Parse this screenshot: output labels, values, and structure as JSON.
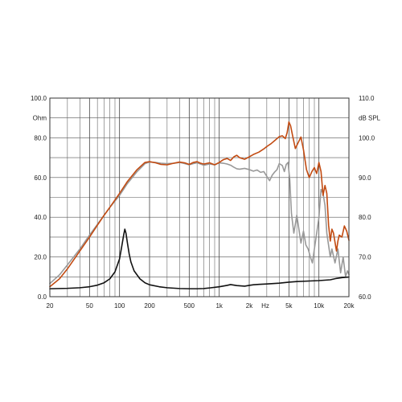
{
  "chart_data": {
    "type": "line",
    "x_scale": "log",
    "grid": true,
    "left_axis": {
      "unit": "Ohm",
      "range": [
        0,
        100
      ],
      "ticks": [
        "0.0",
        "20.0",
        "40.0",
        "60.0",
        "80.0",
        "100.0"
      ]
    },
    "right_axis": {
      "unit": "dB SPL",
      "range": [
        60,
        110
      ],
      "ticks": [
        "60.0",
        "70.0",
        "80.0",
        "90.0",
        "100.0",
        "110.0"
      ]
    },
    "x_axis": {
      "unit": "Hz",
      "range": [
        20,
        20000
      ],
      "tick_labels": [
        {
          "value": 20,
          "label": "20"
        },
        {
          "value": 50,
          "label": "50"
        },
        {
          "value": 100,
          "label": "100"
        },
        {
          "value": 200,
          "label": "200"
        },
        {
          "value": 500,
          "label": "500"
        },
        {
          "value": 1000,
          "label": "1k"
        },
        {
          "value": 2000,
          "label": "2k"
        },
        {
          "value": 5000,
          "label": "5k"
        },
        {
          "value": 10000,
          "label": "10k"
        },
        {
          "value": 20000,
          "label": "20k"
        }
      ]
    },
    "series": [
      {
        "key": "spl_on_axis",
        "axis": "right",
        "color": "#c24b12",
        "points": [
          [
            20,
            62.5
          ],
          [
            25,
            64.5
          ],
          [
            30,
            67
          ],
          [
            40,
            71.5
          ],
          [
            50,
            75
          ],
          [
            60,
            78
          ],
          [
            70,
            80.5
          ],
          [
            80,
            82.5
          ],
          [
            100,
            86
          ],
          [
            120,
            89
          ],
          [
            150,
            92
          ],
          [
            180,
            93.8
          ],
          [
            200,
            94
          ],
          [
            230,
            93.7
          ],
          [
            260,
            93.3
          ],
          [
            300,
            93.2
          ],
          [
            350,
            93.6
          ],
          [
            400,
            93.9
          ],
          [
            450,
            93.7
          ],
          [
            500,
            93.3
          ],
          [
            550,
            93.8
          ],
          [
            600,
            94
          ],
          [
            650,
            93.6
          ],
          [
            700,
            93.4
          ],
          [
            800,
            93.7
          ],
          [
            900,
            93.2
          ],
          [
            1000,
            93.8
          ],
          [
            1100,
            94.5
          ],
          [
            1200,
            94.8
          ],
          [
            1300,
            94.3
          ],
          [
            1400,
            95.2
          ],
          [
            1500,
            95.6
          ],
          [
            1600,
            95
          ],
          [
            1800,
            94.6
          ],
          [
            2000,
            95.2
          ],
          [
            2200,
            95.8
          ],
          [
            2500,
            96.4
          ],
          [
            2800,
            97.2
          ],
          [
            3000,
            97.8
          ],
          [
            3300,
            98.5
          ],
          [
            3600,
            99.3
          ],
          [
            4000,
            100.3
          ],
          [
            4300,
            100.5
          ],
          [
            4600,
            99.8
          ],
          [
            4800,
            101.3
          ],
          [
            5000,
            104
          ],
          [
            5200,
            103
          ],
          [
            5500,
            100
          ],
          [
            5800,
            97.3
          ],
          [
            6200,
            98.8
          ],
          [
            6600,
            100.2
          ],
          [
            7000,
            97
          ],
          [
            7500,
            92
          ],
          [
            8000,
            90
          ],
          [
            8500,
            91.5
          ],
          [
            9000,
            92.5
          ],
          [
            9500,
            91
          ],
          [
            10000,
            93.8
          ],
          [
            10500,
            91.5
          ],
          [
            11000,
            85.5
          ],
          [
            11500,
            88
          ],
          [
            12000,
            86
          ],
          [
            12500,
            78
          ],
          [
            13000,
            74
          ],
          [
            13500,
            77
          ],
          [
            14000,
            76
          ],
          [
            15000,
            71.5
          ],
          [
            15500,
            74
          ],
          [
            16000,
            75.5
          ],
          [
            17000,
            75
          ],
          [
            18000,
            77.8
          ],
          [
            19000,
            76.5
          ],
          [
            20000,
            74.2
          ]
        ]
      },
      {
        "key": "spl_off_axis",
        "axis": "right",
        "color": "#999999",
        "points": [
          [
            20,
            63.3
          ],
          [
            25,
            65.5
          ],
          [
            30,
            68
          ],
          [
            40,
            72
          ],
          [
            50,
            75.5
          ],
          [
            60,
            78.2
          ],
          [
            70,
            80.5
          ],
          [
            80,
            82.5
          ],
          [
            100,
            85.5
          ],
          [
            120,
            88.5
          ],
          [
            150,
            91.5
          ],
          [
            180,
            93.5
          ],
          [
            200,
            93.9
          ],
          [
            230,
            93.8
          ],
          [
            260,
            93.6
          ],
          [
            300,
            93.5
          ],
          [
            350,
            93.6
          ],
          [
            400,
            93.8
          ],
          [
            450,
            93.5
          ],
          [
            500,
            93.2
          ],
          [
            550,
            93.5
          ],
          [
            600,
            93.7
          ],
          [
            650,
            93.4
          ],
          [
            700,
            93.1
          ],
          [
            800,
            93.4
          ],
          [
            900,
            93.2
          ],
          [
            1000,
            93.7
          ],
          [
            1100,
            93.6
          ],
          [
            1200,
            93.4
          ],
          [
            1300,
            93.1
          ],
          [
            1400,
            92.6
          ],
          [
            1500,
            92.2
          ],
          [
            1600,
            92.1
          ],
          [
            1800,
            92.3
          ],
          [
            2000,
            92
          ],
          [
            2200,
            91.6
          ],
          [
            2400,
            91.9
          ],
          [
            2600,
            91.3
          ],
          [
            2800,
            91.5
          ],
          [
            3000,
            90.3
          ],
          [
            3200,
            89.2
          ],
          [
            3400,
            90.6
          ],
          [
            3600,
            91.4
          ],
          [
            3800,
            92
          ],
          [
            4000,
            93.5
          ],
          [
            4300,
            93
          ],
          [
            4500,
            91.5
          ],
          [
            4700,
            93.3
          ],
          [
            4900,
            93.8
          ],
          [
            5100,
            89.5
          ],
          [
            5300,
            81
          ],
          [
            5600,
            76
          ],
          [
            6000,
            80.5
          ],
          [
            6300,
            77
          ],
          [
            6600,
            73.5
          ],
          [
            7000,
            76.5
          ],
          [
            7400,
            73
          ],
          [
            7800,
            72
          ],
          [
            8200,
            70
          ],
          [
            8600,
            68.5
          ],
          [
            9000,
            72
          ],
          [
            9500,
            76
          ],
          [
            10000,
            80
          ],
          [
            10500,
            87
          ],
          [
            11000,
            86
          ],
          [
            11500,
            83
          ],
          [
            12000,
            76
          ],
          [
            13000,
            70
          ],
          [
            13500,
            72
          ],
          [
            14500,
            68.5
          ],
          [
            15500,
            72
          ],
          [
            16500,
            66
          ],
          [
            17500,
            70
          ],
          [
            18500,
            65
          ],
          [
            19300,
            66.5
          ],
          [
            20000,
            65.6
          ]
        ]
      },
      {
        "key": "impedance",
        "axis": "left",
        "color": "#111111",
        "points": [
          [
            20,
            4
          ],
          [
            30,
            4.2
          ],
          [
            40,
            4.5
          ],
          [
            50,
            5
          ],
          [
            60,
            5.8
          ],
          [
            70,
            7
          ],
          [
            80,
            9
          ],
          [
            90,
            12.5
          ],
          [
            100,
            19
          ],
          [
            105,
            25
          ],
          [
            110,
            31
          ],
          [
            113,
            34
          ],
          [
            116,
            32
          ],
          [
            120,
            27
          ],
          [
            125,
            21.5
          ],
          [
            130,
            17.5
          ],
          [
            140,
            13
          ],
          [
            160,
            9
          ],
          [
            180,
            7
          ],
          [
            200,
            6
          ],
          [
            250,
            5
          ],
          [
            300,
            4.5
          ],
          [
            400,
            4.1
          ],
          [
            500,
            4
          ],
          [
            600,
            4
          ],
          [
            700,
            4.1
          ],
          [
            800,
            4.4
          ],
          [
            1000,
            5
          ],
          [
            1200,
            5.7
          ],
          [
            1300,
            6.1
          ],
          [
            1500,
            5.6
          ],
          [
            1800,
            5.3
          ],
          [
            2000,
            5.7
          ],
          [
            2200,
            6
          ],
          [
            2500,
            6.2
          ],
          [
            3000,
            6.4
          ],
          [
            4000,
            6.8
          ],
          [
            5000,
            7.3
          ],
          [
            6000,
            7.6
          ],
          [
            8000,
            7.9
          ],
          [
            10000,
            8.1
          ],
          [
            13000,
            8.5
          ],
          [
            15000,
            9.2
          ],
          [
            17000,
            9.6
          ],
          [
            20000,
            9.9
          ]
        ]
      }
    ]
  }
}
